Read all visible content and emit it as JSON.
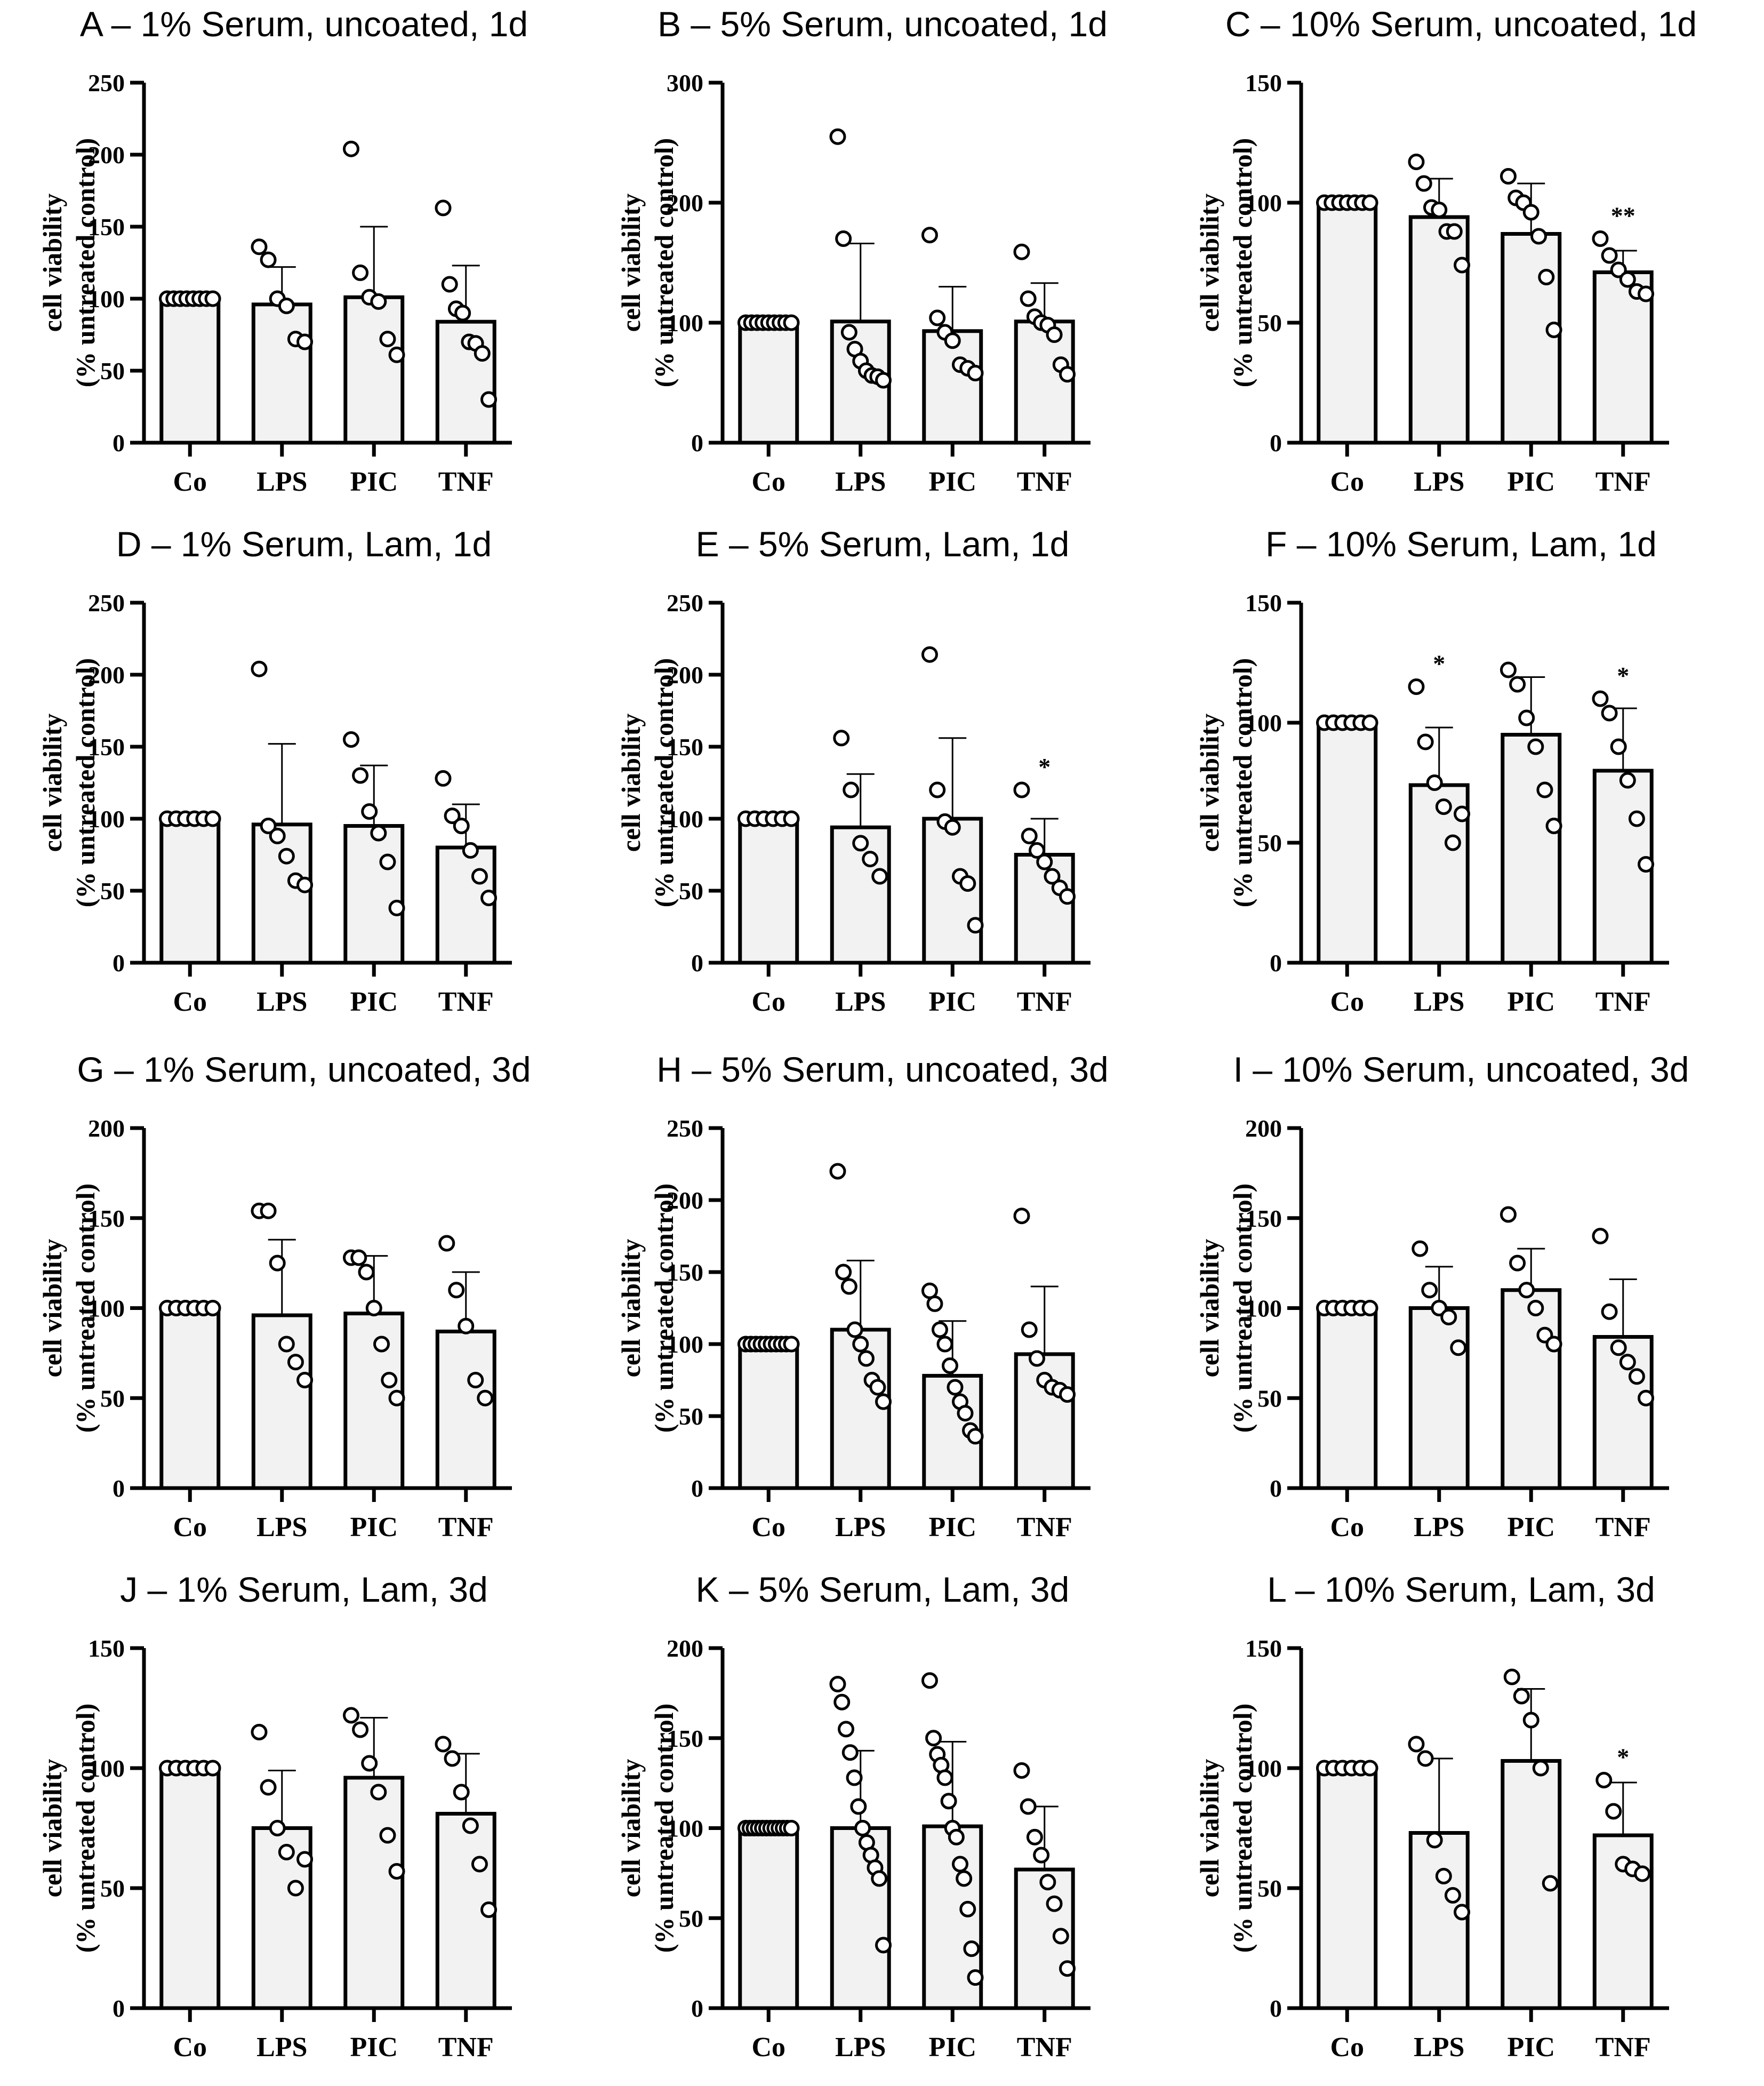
{
  "chart_data": [
    {
      "panel": "A",
      "type": "bar",
      "title": "A – 1% Serum, uncoated, 1d",
      "ylabel_line1": "cell viability",
      "ylabel_line2": "(% untreated control)",
      "categories": [
        "Co",
        "LPS",
        "PIC",
        "TNF"
      ],
      "ylim": [
        0,
        250
      ],
      "yticks": [
        0,
        50,
        100,
        150,
        200,
        250
      ],
      "ytick_labels": [
        "0",
        "50",
        "100",
        "150",
        "200",
        "250"
      ],
      "means": [
        100,
        96,
        101,
        84
      ],
      "sd_upper": [
        100,
        122,
        150,
        123
      ],
      "points": [
        [
          100,
          100,
          100,
          100,
          100,
          100,
          100,
          100
        ],
        [
          136,
          127,
          100,
          95,
          72,
          70
        ],
        [
          204,
          118,
          101,
          98,
          72,
          61
        ],
        [
          163,
          110,
          93,
          90,
          70,
          69,
          62,
          30
        ]
      ],
      "annotations": [
        "",
        "",
        "",
        ""
      ]
    },
    {
      "panel": "B",
      "type": "bar",
      "title": "B – 5% Serum, uncoated, 1d",
      "ylabel_line1": "cell viability",
      "ylabel_line2": "(% untreated control)",
      "categories": [
        "Co",
        "LPS",
        "PIC",
        "TNF"
      ],
      "ylim": [
        0,
        300
      ],
      "yticks": [
        0,
        100,
        200,
        300
      ],
      "ytick_labels": [
        "0",
        "100",
        "200",
        "300"
      ],
      "means": [
        100,
        101,
        93,
        101
      ],
      "sd_upper": [
        100,
        166,
        130,
        133
      ],
      "points": [
        [
          100,
          100,
          100,
          100,
          100,
          100,
          100,
          100,
          100
        ],
        [
          255,
          170,
          92,
          78,
          68,
          60,
          56,
          55,
          52
        ],
        [
          173,
          104,
          92,
          85,
          65,
          62,
          58
        ],
        [
          159,
          120,
          105,
          100,
          98,
          90,
          65,
          57
        ]
      ],
      "annotations": [
        "",
        "",
        "",
        ""
      ]
    },
    {
      "panel": "C",
      "type": "bar",
      "title": "C – 10% Serum, uncoated, 1d",
      "ylabel_line1": "cell viability",
      "ylabel_line2": "(% untreated control)",
      "categories": [
        "Co",
        "LPS",
        "PIC",
        "TNF"
      ],
      "ylim": [
        0,
        150
      ],
      "yticks": [
        0,
        50,
        100,
        150
      ],
      "ytick_labels": [
        "0",
        "50",
        "100",
        "150"
      ],
      "means": [
        100,
        94,
        87,
        71
      ],
      "sd_upper": [
        100,
        110,
        108,
        80
      ],
      "points": [
        [
          100,
          100,
          100,
          100,
          100,
          100,
          100
        ],
        [
          117,
          108,
          98,
          97,
          88,
          88,
          74
        ],
        [
          111,
          102,
          100,
          96,
          86,
          69,
          47
        ],
        [
          85,
          78,
          72,
          68,
          63,
          62
        ]
      ],
      "annotations": [
        "",
        "",
        "",
        "**"
      ]
    },
    {
      "panel": "D",
      "type": "bar",
      "title": "D – 1% Serum, Lam, 1d",
      "ylabel_line1": "cell viability",
      "ylabel_line2": "(% untreated control)",
      "categories": [
        "Co",
        "LPS",
        "PIC",
        "TNF"
      ],
      "ylim": [
        0,
        250
      ],
      "yticks": [
        0,
        50,
        100,
        150,
        200,
        250
      ],
      "ytick_labels": [
        "0",
        "50",
        "100",
        "150",
        "200",
        "250"
      ],
      "means": [
        100,
        96,
        95,
        80
      ],
      "sd_upper": [
        100,
        152,
        137,
        110
      ],
      "points": [
        [
          100,
          100,
          100,
          100,
          100,
          100
        ],
        [
          204,
          95,
          88,
          74,
          57,
          54
        ],
        [
          155,
          130,
          105,
          90,
          70,
          38
        ],
        [
          128,
          102,
          95,
          78,
          60,
          45
        ]
      ],
      "annotations": [
        "",
        "",
        "",
        ""
      ]
    },
    {
      "panel": "E",
      "type": "bar",
      "title": "E – 5% Serum, Lam, 1d",
      "ylabel_line1": "cell viability",
      "ylabel_line2": "(% untreated control)",
      "categories": [
        "Co",
        "LPS",
        "PIC",
        "TNF"
      ],
      "ylim": [
        0,
        250
      ],
      "yticks": [
        0,
        50,
        100,
        150,
        200,
        250
      ],
      "ytick_labels": [
        "0",
        "50",
        "100",
        "150",
        "200",
        "250"
      ],
      "means": [
        100,
        94,
        100,
        75
      ],
      "sd_upper": [
        100,
        131,
        156,
        100
      ],
      "points": [
        [
          100,
          100,
          100,
          100,
          100,
          100
        ],
        [
          156,
          120,
          83,
          72,
          60
        ],
        [
          214,
          120,
          98,
          94,
          60,
          55,
          26
        ],
        [
          120,
          88,
          78,
          70,
          60,
          52,
          46
        ]
      ],
      "annotations": [
        "",
        "",
        "",
        "*"
      ]
    },
    {
      "panel": "F",
      "type": "bar",
      "title": "F – 10% Serum, Lam, 1d",
      "ylabel_line1": "cell viability",
      "ylabel_line2": "(% untreated control)",
      "categories": [
        "Co",
        "LPS",
        "PIC",
        "TNF"
      ],
      "ylim": [
        0,
        150
      ],
      "yticks": [
        0,
        50,
        100,
        150
      ],
      "ytick_labels": [
        "0",
        "50",
        "100",
        "150"
      ],
      "means": [
        100,
        74,
        95,
        80
      ],
      "sd_upper": [
        100,
        98,
        119,
        106
      ],
      "points": [
        [
          100,
          100,
          100,
          100,
          100,
          100
        ],
        [
          115,
          92,
          75,
          65,
          50,
          62
        ],
        [
          122,
          116,
          102,
          90,
          72,
          57
        ],
        [
          110,
          104,
          90,
          76,
          60,
          41
        ]
      ],
      "annotations": [
        "",
        "*",
        "",
        "*"
      ]
    },
    {
      "panel": "G",
      "type": "bar",
      "title": "G – 1% Serum, uncoated, 3d",
      "ylabel_line1": "cell viability",
      "ylabel_line2": "(% untreated control)",
      "categories": [
        "Co",
        "LPS",
        "PIC",
        "TNF"
      ],
      "ylim": [
        0,
        200
      ],
      "yticks": [
        0,
        50,
        100,
        150,
        200
      ],
      "ytick_labels": [
        "0",
        "50",
        "100",
        "150",
        "200"
      ],
      "means": [
        100,
        96,
        97,
        87
      ],
      "sd_upper": [
        100,
        138,
        129,
        120
      ],
      "points": [
        [
          100,
          100,
          100,
          100,
          100,
          100
        ],
        [
          154,
          154,
          125,
          80,
          70,
          60
        ],
        [
          128,
          128,
          120,
          100,
          80,
          60,
          50
        ],
        [
          136,
          110,
          90,
          60,
          50
        ]
      ],
      "annotations": [
        "",
        "",
        "",
        ""
      ]
    },
    {
      "panel": "H",
      "type": "bar",
      "title": "H – 5% Serum, uncoated, 3d",
      "ylabel_line1": "cell viability",
      "ylabel_line2": "(% untreated control)",
      "categories": [
        "Co",
        "LPS",
        "PIC",
        "TNF"
      ],
      "ylim": [
        0,
        250
      ],
      "yticks": [
        0,
        50,
        100,
        150,
        200,
        250
      ],
      "ytick_labels": [
        "0",
        "50",
        "100",
        "150",
        "200",
        "250"
      ],
      "means": [
        100,
        110,
        78,
        93
      ],
      "sd_upper": [
        100,
        158,
        116,
        140
      ],
      "points": [
        [
          100,
          100,
          100,
          100,
          100,
          100,
          100,
          100,
          100,
          100
        ],
        [
          220,
          150,
          140,
          110,
          100,
          90,
          75,
          70,
          60
        ],
        [
          137,
          128,
          110,
          100,
          85,
          70,
          60,
          52,
          40,
          36
        ],
        [
          189,
          110,
          90,
          75,
          70,
          68,
          65
        ]
      ],
      "annotations": [
        "",
        "",
        "",
        ""
      ]
    },
    {
      "panel": "I",
      "type": "bar",
      "title": "I – 10% Serum, uncoated, 3d",
      "ylabel_line1": "cell viability",
      "ylabel_line2": "(% untreated control)",
      "categories": [
        "Co",
        "LPS",
        "PIC",
        "TNF"
      ],
      "ylim": [
        0,
        200
      ],
      "yticks": [
        0,
        50,
        100,
        150,
        200
      ],
      "ytick_labels": [
        "0",
        "50",
        "100",
        "150",
        "200"
      ],
      "means": [
        100,
        100,
        110,
        84
      ],
      "sd_upper": [
        100,
        123,
        133,
        116
      ],
      "points": [
        [
          100,
          100,
          100,
          100,
          100,
          100
        ],
        [
          133,
          110,
          100,
          95,
          78
        ],
        [
          152,
          125,
          110,
          100,
          85,
          80
        ],
        [
          140,
          98,
          78,
          70,
          62,
          50
        ]
      ],
      "annotations": [
        "",
        "",
        "",
        ""
      ]
    },
    {
      "panel": "J",
      "type": "bar",
      "title": "J – 1% Serum, Lam, 3d",
      "ylabel_line1": "cell viability",
      "ylabel_line2": "(% untreated control)",
      "categories": [
        "Co",
        "LPS",
        "PIC",
        "TNF"
      ],
      "ylim": [
        0,
        150
      ],
      "yticks": [
        0,
        50,
        100,
        150
      ],
      "ytick_labels": [
        "0",
        "50",
        "100",
        "150"
      ],
      "means": [
        100,
        75,
        96,
        81
      ],
      "sd_upper": [
        100,
        99,
        121,
        106
      ],
      "points": [
        [
          100,
          100,
          100,
          100,
          100,
          100
        ],
        [
          115,
          92,
          75,
          65,
          50,
          62
        ],
        [
          122,
          116,
          102,
          90,
          72,
          57
        ],
        [
          110,
          104,
          90,
          76,
          60,
          41
        ]
      ],
      "annotations": [
        "",
        "",
        "",
        ""
      ]
    },
    {
      "panel": "K",
      "type": "bar",
      "title": "K – 5% Serum, Lam, 3d",
      "ylabel_line1": "cell viability",
      "ylabel_line2": "(% untreated control)",
      "categories": [
        "Co",
        "LPS",
        "PIC",
        "TNF"
      ],
      "ylim": [
        0,
        200
      ],
      "yticks": [
        0,
        50,
        100,
        150,
        200
      ],
      "ytick_labels": [
        "0",
        "50",
        "100",
        "150",
        "200"
      ],
      "means": [
        100,
        100,
        101,
        77
      ],
      "sd_upper": [
        100,
        143,
        148,
        112
      ],
      "points": [
        [
          100,
          100,
          100,
          100,
          100,
          100,
          100,
          100,
          100,
          100,
          100,
          100
        ],
        [
          180,
          170,
          155,
          142,
          128,
          112,
          100,
          92,
          85,
          78,
          72,
          35
        ],
        [
          182,
          150,
          141,
          135,
          128,
          115,
          100,
          95,
          80,
          72,
          55,
          33,
          17
        ],
        [
          132,
          112,
          95,
          85,
          70,
          58,
          40,
          22
        ]
      ],
      "annotations": [
        "",
        "",
        "",
        ""
      ]
    },
    {
      "panel": "L",
      "type": "bar",
      "title": "L – 10% Serum, Lam, 3d",
      "ylabel_line1": "cell viability",
      "ylabel_line2": "(% untreated control)",
      "categories": [
        "Co",
        "LPS",
        "PIC",
        "TNF"
      ],
      "ylim": [
        0,
        150
      ],
      "yticks": [
        0,
        50,
        100,
        150
      ],
      "ytick_labels": [
        "0",
        "50",
        "100",
        "150"
      ],
      "means": [
        100,
        73,
        103,
        72
      ],
      "sd_upper": [
        100,
        104,
        133,
        94
      ],
      "points": [
        [
          100,
          100,
          100,
          100,
          100,
          100
        ],
        [
          110,
          104,
          70,
          55,
          47,
          40
        ],
        [
          138,
          130,
          120,
          100,
          52
        ],
        [
          95,
          82,
          60,
          58,
          56
        ]
      ],
      "annotations": [
        "",
        "",
        "",
        "*"
      ]
    }
  ]
}
